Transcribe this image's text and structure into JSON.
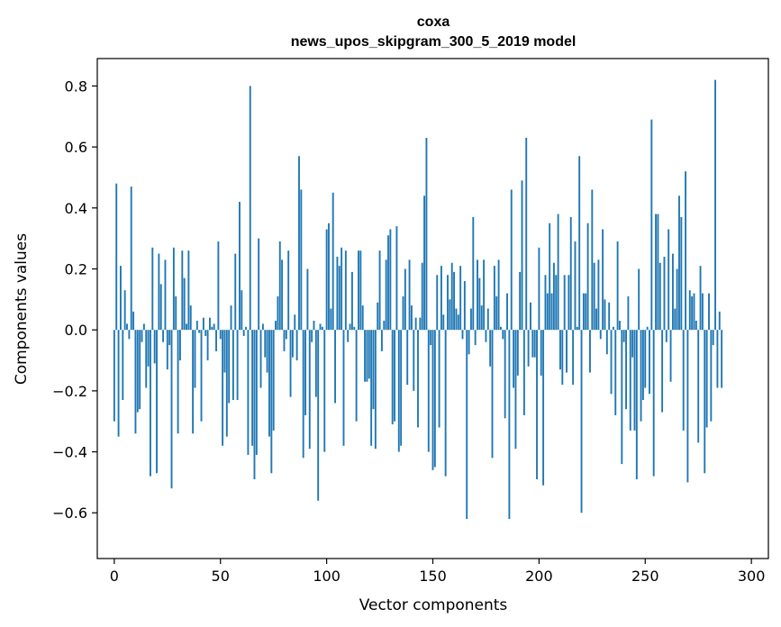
{
  "chart_data": {
    "type": "bar",
    "title": "coxa",
    "subtitle": "news_upos_skipgram_300_5_2019 model",
    "xlabel": "Vector components",
    "ylabel": "Components values",
    "xlim": [
      -8,
      308
    ],
    "ylim": [
      -0.75,
      0.89
    ],
    "xticks": [
      0,
      50,
      100,
      150,
      200,
      250,
      300
    ],
    "yticks": [
      -0.6,
      -0.4,
      -0.2,
      0.0,
      0.2,
      0.4,
      0.6,
      0.8
    ],
    "ytick_labels": [
      "−0.6",
      "−0.4",
      "−0.2",
      "0.0",
      "0.2",
      "0.4",
      "0.6",
      "0.8"
    ],
    "bar_color": "#1f77b4",
    "grid": false,
    "legend": "none",
    "values": [
      -0.3,
      0.48,
      -0.35,
      0.21,
      -0.23,
      0.13,
      0.02,
      -0.03,
      0.47,
      0.06,
      -0.34,
      -0.27,
      -0.26,
      -0.04,
      0.02,
      -0.19,
      -0.12,
      -0.48,
      0.27,
      -0.11,
      -0.47,
      0.25,
      0.15,
      -0.04,
      0.23,
      -0.13,
      -0.05,
      -0.52,
      0.27,
      0.11,
      -0.34,
      -0.1,
      0.26,
      0.17,
      0.02,
      0.26,
      0.08,
      -0.34,
      -0.19,
      0.03,
      -0.01,
      -0.3,
      0.04,
      -0.02,
      -0.1,
      0.04,
      0.01,
      0.02,
      -0.07,
      0.29,
      -0.03,
      -0.38,
      -0.14,
      -0.35,
      -0.24,
      0.08,
      -0.23,
      0.25,
      -0.23,
      0.42,
      0.13,
      -0.02,
      0.01,
      -0.41,
      0.8,
      -0.38,
      -0.49,
      -0.41,
      0.3,
      -0.19,
      0.02,
      -0.09,
      -0.14,
      -0.35,
      -0.47,
      -0.33,
      0.03,
      0.11,
      0.29,
      0.23,
      -0.07,
      -0.03,
      0.26,
      -0.22,
      -0.09,
      0.05,
      -0.1,
      0.57,
      0.46,
      -0.42,
      -0.28,
      0.2,
      -0.39,
      -0.04,
      0.03,
      -0.22,
      -0.56,
      0.02,
      0.01,
      -0.4,
      0.33,
      0.35,
      0.07,
      0.45,
      -0.24,
      0.24,
      0.21,
      0.27,
      -0.38,
      0.26,
      -0.04,
      0.02,
      0.19,
      0.01,
      -0.3,
      0.26,
      0.26,
      0.08,
      -0.17,
      -0.17,
      -0.16,
      -0.38,
      -0.26,
      -0.39,
      0.09,
      0.26,
      -0.07,
      0.03,
      0.23,
      0.31,
      0.33,
      -0.31,
      -0.3,
      0.34,
      -0.4,
      -0.38,
      0.11,
      0.2,
      -0.18,
      0.23,
      0.08,
      -0.2,
      0.04,
      -0.32,
      0.04,
      0.22,
      0.44,
      0.63,
      -0.4,
      -0.05,
      -0.46,
      -0.45,
      0.18,
      -0.32,
      0.21,
      0.05,
      -0.48,
      0.18,
      0.1,
      0.22,
      0.19,
      0.07,
      0.05,
      0.21,
      -0.03,
      0.16,
      -0.62,
      -0.08,
      0.07,
      0.37,
      -0.05,
      0.23,
      0.17,
      0.08,
      0.23,
      -0.04,
      0.07,
      -0.12,
      -0.42,
      0.21,
      0.11,
      0.23,
      0.01,
      -0.03,
      -0.29,
      0.12,
      -0.62,
      0.46,
      -0.19,
      -0.39,
      -0.15,
      0.19,
      0.49,
      -0.28,
      0.63,
      -0.12,
      0.09,
      -0.09,
      -0.09,
      -0.49,
      0.27,
      -0.15,
      -0.51,
      0.18,
      0.12,
      0.35,
      0.12,
      0.22,
      0.18,
      0.38,
      -0.13,
      -0.18,
      0.18,
      -0.14,
      0.18,
      0.37,
      -0.18,
      0.29,
      0.01,
      0.57,
      -0.6,
      0.12,
      0.12,
      0.35,
      -0.14,
      0.46,
      0.22,
      0.07,
      0.23,
      -0.03,
      0.33,
      0.1,
      -0.08,
      0.09,
      -0.21,
      0.01,
      -0.28,
      0.29,
      0.03,
      -0.44,
      -0.04,
      -0.26,
      0.11,
      -0.33,
      -0.09,
      -0.33,
      -0.49,
      0.2,
      -0.3,
      -0.23,
      -0.19,
      0.01,
      -0.21,
      0.69,
      -0.48,
      0.38,
      0.38,
      0.22,
      -0.27,
      0.24,
      -0.04,
      0.33,
      -0.17,
      0.25,
      0.07,
      0.2,
      0.44,
      0.37,
      -0.33,
      0.52,
      -0.5,
      0.13,
      0.11,
      0.12,
      0.03,
      -0.37,
      0.21,
      0.12,
      -0.47,
      -0.32,
      0.12,
      -0.3,
      -0.05,
      0.82,
      -0.19,
      0.06,
      -0.19
    ]
  }
}
